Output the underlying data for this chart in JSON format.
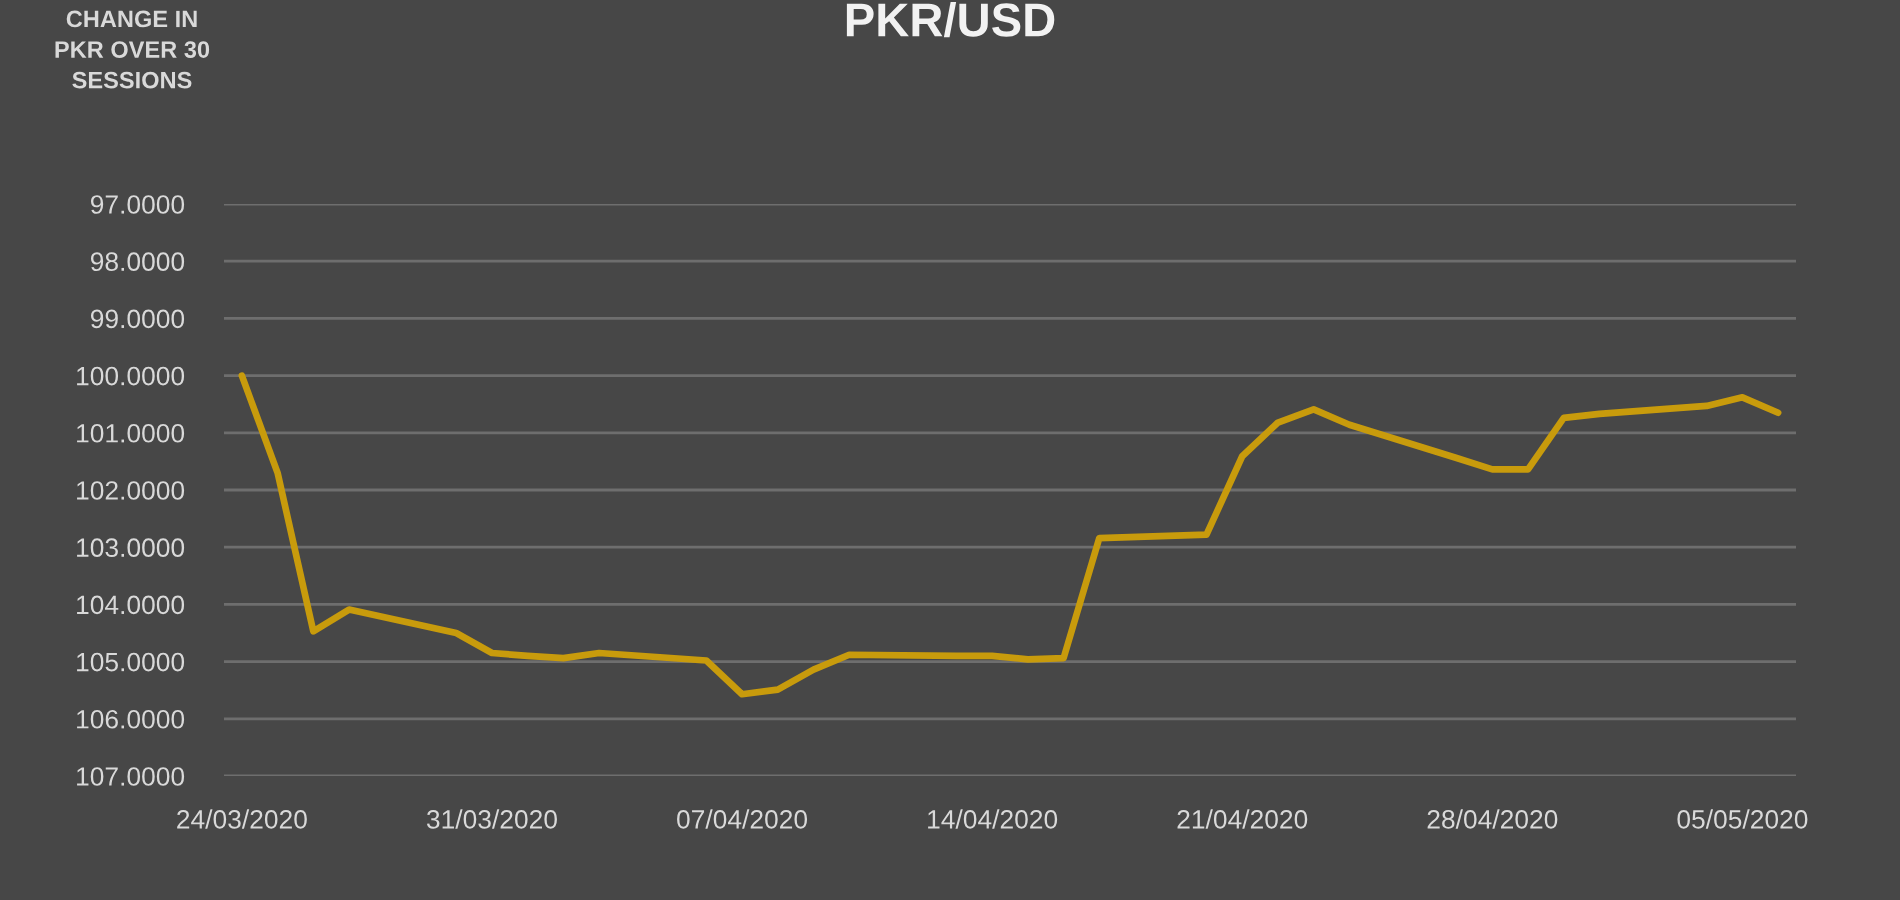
{
  "chart_data": {
    "type": "line",
    "title": "PKR/USD",
    "annotations": [
      "CHANGE IN PKR OVER 30 SESSIONS"
    ],
    "x": [
      "2020-03-24",
      "2020-03-25",
      "2020-03-26",
      "2020-03-27",
      "2020-03-30",
      "2020-03-31",
      "2020-04-01",
      "2020-04-02",
      "2020-04-03",
      "2020-04-06",
      "2020-04-07",
      "2020-04-08",
      "2020-04-09",
      "2020-04-10",
      "2020-04-13",
      "2020-04-14",
      "2020-04-15",
      "2020-04-16",
      "2020-04-17",
      "2020-04-20",
      "2020-04-21",
      "2020-04-22",
      "2020-04-23",
      "2020-04-24",
      "2020-04-27",
      "2020-04-28",
      "2020-04-29",
      "2020-04-30",
      "2020-05-01",
      "2020-05-04",
      "2020-05-05",
      "2020-05-06"
    ],
    "series": [
      {
        "color": "#c89b0c",
        "values": [
          100.0,
          101.7,
          104.47,
          104.09,
          104.5,
          104.85,
          104.9,
          104.94,
          104.85,
          104.98,
          105.57,
          105.49,
          105.14,
          104.88,
          104.9,
          104.9,
          104.96,
          104.94,
          102.84,
          102.78,
          101.41,
          100.82,
          100.59,
          100.86,
          101.44,
          101.64,
          101.64,
          100.74,
          100.67,
          100.53,
          100.38,
          100.65
        ]
      }
    ],
    "xlim": [
      "2020-03-23T12:00",
      "2020-05-06T12:00"
    ],
    "xticks": [
      {
        "value": "2020-03-24",
        "label": "24/03/2020"
      },
      {
        "value": "2020-03-31",
        "label": "31/03/2020"
      },
      {
        "value": "2020-04-07",
        "label": "07/04/2020"
      },
      {
        "value": "2020-04-14",
        "label": "14/04/2020"
      },
      {
        "value": "2020-04-21",
        "label": "21/04/2020"
      },
      {
        "value": "2020-04-28",
        "label": "28/04/2020"
      },
      {
        "value": "2020-05-05",
        "label": "05/05/2020"
      }
    ],
    "ylim": [
      107,
      97
    ],
    "yticks": [
      {
        "value": 97,
        "label": "97.0000"
      },
      {
        "value": 98,
        "label": "98.0000"
      },
      {
        "value": 99,
        "label": "99.0000"
      },
      {
        "value": 100,
        "label": "100.0000"
      },
      {
        "value": 101,
        "label": "101.0000"
      },
      {
        "value": 102,
        "label": "102.0000"
      },
      {
        "value": 103,
        "label": "103.0000"
      },
      {
        "value": 104,
        "label": "104.0000"
      },
      {
        "value": 105,
        "label": "105.0000"
      },
      {
        "value": 106,
        "label": "106.0000"
      },
      {
        "value": 107,
        "label": "107.0000"
      }
    ],
    "grid": "y",
    "marker": "none",
    "line_style": "solid"
  }
}
